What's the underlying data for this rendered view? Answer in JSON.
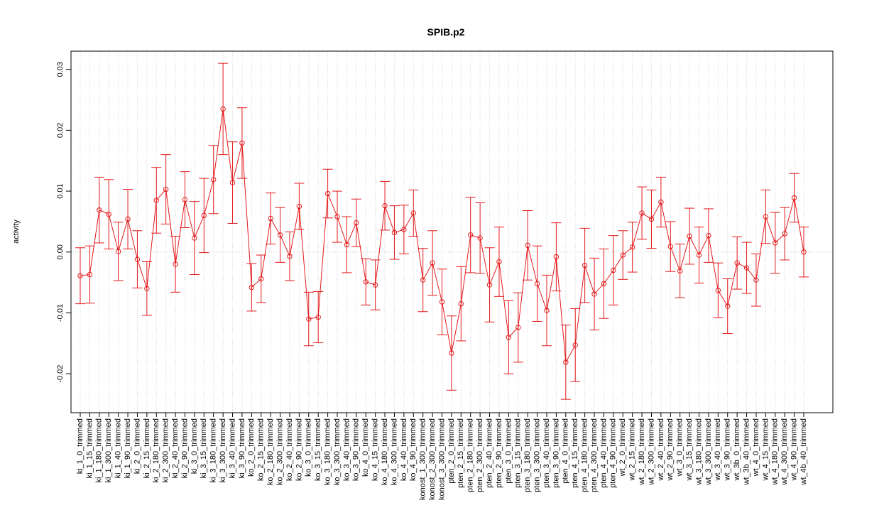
{
  "chart_data": {
    "type": "errorbar_line",
    "title": "SPIB.p2",
    "y_label": "activity",
    "color": "#e31a1c",
    "grid": true,
    "reference_line": 0,
    "ylim": [
      -0.0264,
      0.033
    ],
    "yticks": [
      {
        "value": -0.02,
        "label": "-0.02"
      },
      {
        "value": -0.01,
        "label": "-0.01"
      },
      {
        "value": 0,
        "label": "0.00"
      },
      {
        "value": 0.01,
        "label": "0.01"
      },
      {
        "value": 0.02,
        "label": "0.02"
      },
      {
        "value": 0.03,
        "label": "0.03"
      }
    ],
    "categories": [
      "ki_1_0_trimmed",
      "ki_1_15_trimmed",
      "ki_1_180_trimmed",
      "ki_1_300_trimmed",
      "ki_1_40_trimmed",
      "ki_1_90_trimmed",
      "ki_2_0_trimmed",
      "ki_2_15_trimmed",
      "ki_2_180_trimmed",
      "ki_2_300_trimmed",
      "ki_2_40_trimmed",
      "ki_2_90_trimmed",
      "ki_3_0_trimmed",
      "ki_3_15_trimmed",
      "ki_3_180_trimmed",
      "ki_3_300_trimmed",
      "ki_3_40_trimmed",
      "ki_3_90_trimmed",
      "ko_2_0_trimmed",
      "ko_2_15_trimmed",
      "ko_2_180_trimmed",
      "ko_2_300_trimmed",
      "ko_2_40_trimmed",
      "ko_2_90_trimmed",
      "ko_3_0_trimmed",
      "ko_3_15_trimmed",
      "ko_3_180_trimmed",
      "ko_3_300_trimmed",
      "ko_3_40_trimmed",
      "ko_3_90_trimmed",
      "ko_4_0_trimmed",
      "ko_4_15_trimmed",
      "ko_4_180_trimmed",
      "ko_4_300_trimmed",
      "ko_4_40_trimmed",
      "ko_4_90_trimmed",
      "konost_1_300_trimmed",
      "konost_2_300_trimmed",
      "konost_3_300_trimmed",
      "pten_2_0_trimmed",
      "pten_2_15_trimmed",
      "pten_2_180_trimmed",
      "pten_2_300_trimmed",
      "pten_2_40_trimmed",
      "pten_2_90_trimmed",
      "pten_3_0_trimmed",
      "pten_3_15_trimmed",
      "pten_3_180_trimmed",
      "pten_3_300_trimmed",
      "pten_3_40_trimmed",
      "pten_3_90_trimmed",
      "pten_4_0_trimmed",
      "pten_4_15_trimmed",
      "pten_4_180_trimmed",
      "pten_4_300_trimmed",
      "pten_4_40_trimmed",
      "pten_4_90_trimmed",
      "wt_2_0_trimmed",
      "wt_2_15_trimmed",
      "wt_2_180_trimmed",
      "wt_2_300_trimmed",
      "wt_2_40_trimmed",
      "wt_2_90_trimmed",
      "wt_3_0_trimmed",
      "wt_3_15_trimmed",
      "wt_3_180_trimmed",
      "wt_3_300_trimmed",
      "wt_3_40_trimmed",
      "wt_3_90_trimmed",
      "wt_3b_0_trimmed",
      "wt_3b_40_trimmed",
      "wt_4_0_trimmed",
      "wt_4_15_trimmed",
      "wt_4_180_trimmed",
      "wt_4_300_trimmed",
      "wt_4_90_trimmed",
      "wt_4b_40_trimmed"
    ],
    "values": [
      -0.0039,
      -0.0037,
      0.0069,
      0.0062,
      0.0001,
      0.0054,
      -0.0012,
      -0.006,
      0.0085,
      0.0103,
      -0.002,
      0.0086,
      0.0023,
      0.006,
      0.0119,
      0.0235,
      0.0114,
      0.0179,
      -0.0058,
      -0.0044,
      0.0055,
      0.0028,
      -0.0007,
      0.0075,
      -0.011,
      -0.0107,
      0.0096,
      0.0058,
      0.0012,
      0.0048,
      -0.0049,
      -0.0054,
      0.0076,
      0.0032,
      0.0037,
      0.0064,
      -0.0046,
      -0.0018,
      -0.0082,
      -0.0166,
      -0.0085,
      0.0028,
      0.0023,
      -0.0054,
      -0.0016,
      -0.014,
      -0.0124,
      0.0011,
      -0.0052,
      -0.0096,
      -0.0008,
      -0.0181,
      -0.0153,
      -0.0022,
      -0.0069,
      -0.0052,
      -0.003,
      -0.0005,
      0.0008,
      0.0064,
      0.0054,
      0.0082,
      0.0009,
      -0.0031,
      0.0026,
      -0.0005,
      0.0027,
      -0.0063,
      -0.0089,
      -0.0018,
      -0.0026,
      -0.0046,
      0.0058,
      0.0015,
      0.003,
      0.0089,
      0.0
    ],
    "errors": [
      0.0046,
      0.0047,
      0.0054,
      0.0057,
      0.0048,
      0.0049,
      0.0047,
      0.0044,
      0.0054,
      0.0057,
      0.0046,
      0.0046,
      0.006,
      0.0061,
      0.0056,
      0.0075,
      0.0067,
      0.0058,
      0.0039,
      0.0039,
      0.0042,
      0.0045,
      0.004,
      0.0038,
      0.0044,
      0.0042,
      0.004,
      0.0042,
      0.0046,
      0.0039,
      0.0038,
      0.0041,
      0.004,
      0.0044,
      0.004,
      0.0038,
      0.0052,
      0.0053,
      0.0054,
      0.0061,
      0.0061,
      0.0062,
      0.0058,
      0.0061,
      0.0057,
      0.006,
      0.0057,
      0.0057,
      0.0062,
      0.0058,
      0.0056,
      0.0061,
      0.006,
      0.0061,
      0.0059,
      0.0057,
      0.0057,
      0.004,
      0.0041,
      0.0043,
      0.0048,
      0.0041,
      0.0041,
      0.0044,
      0.0046,
      0.0046,
      0.0044,
      0.0045,
      0.0045,
      0.0043,
      0.0042,
      0.0043,
      0.0044,
      0.005,
      0.0043,
      0.004,
      0.0041
    ]
  }
}
